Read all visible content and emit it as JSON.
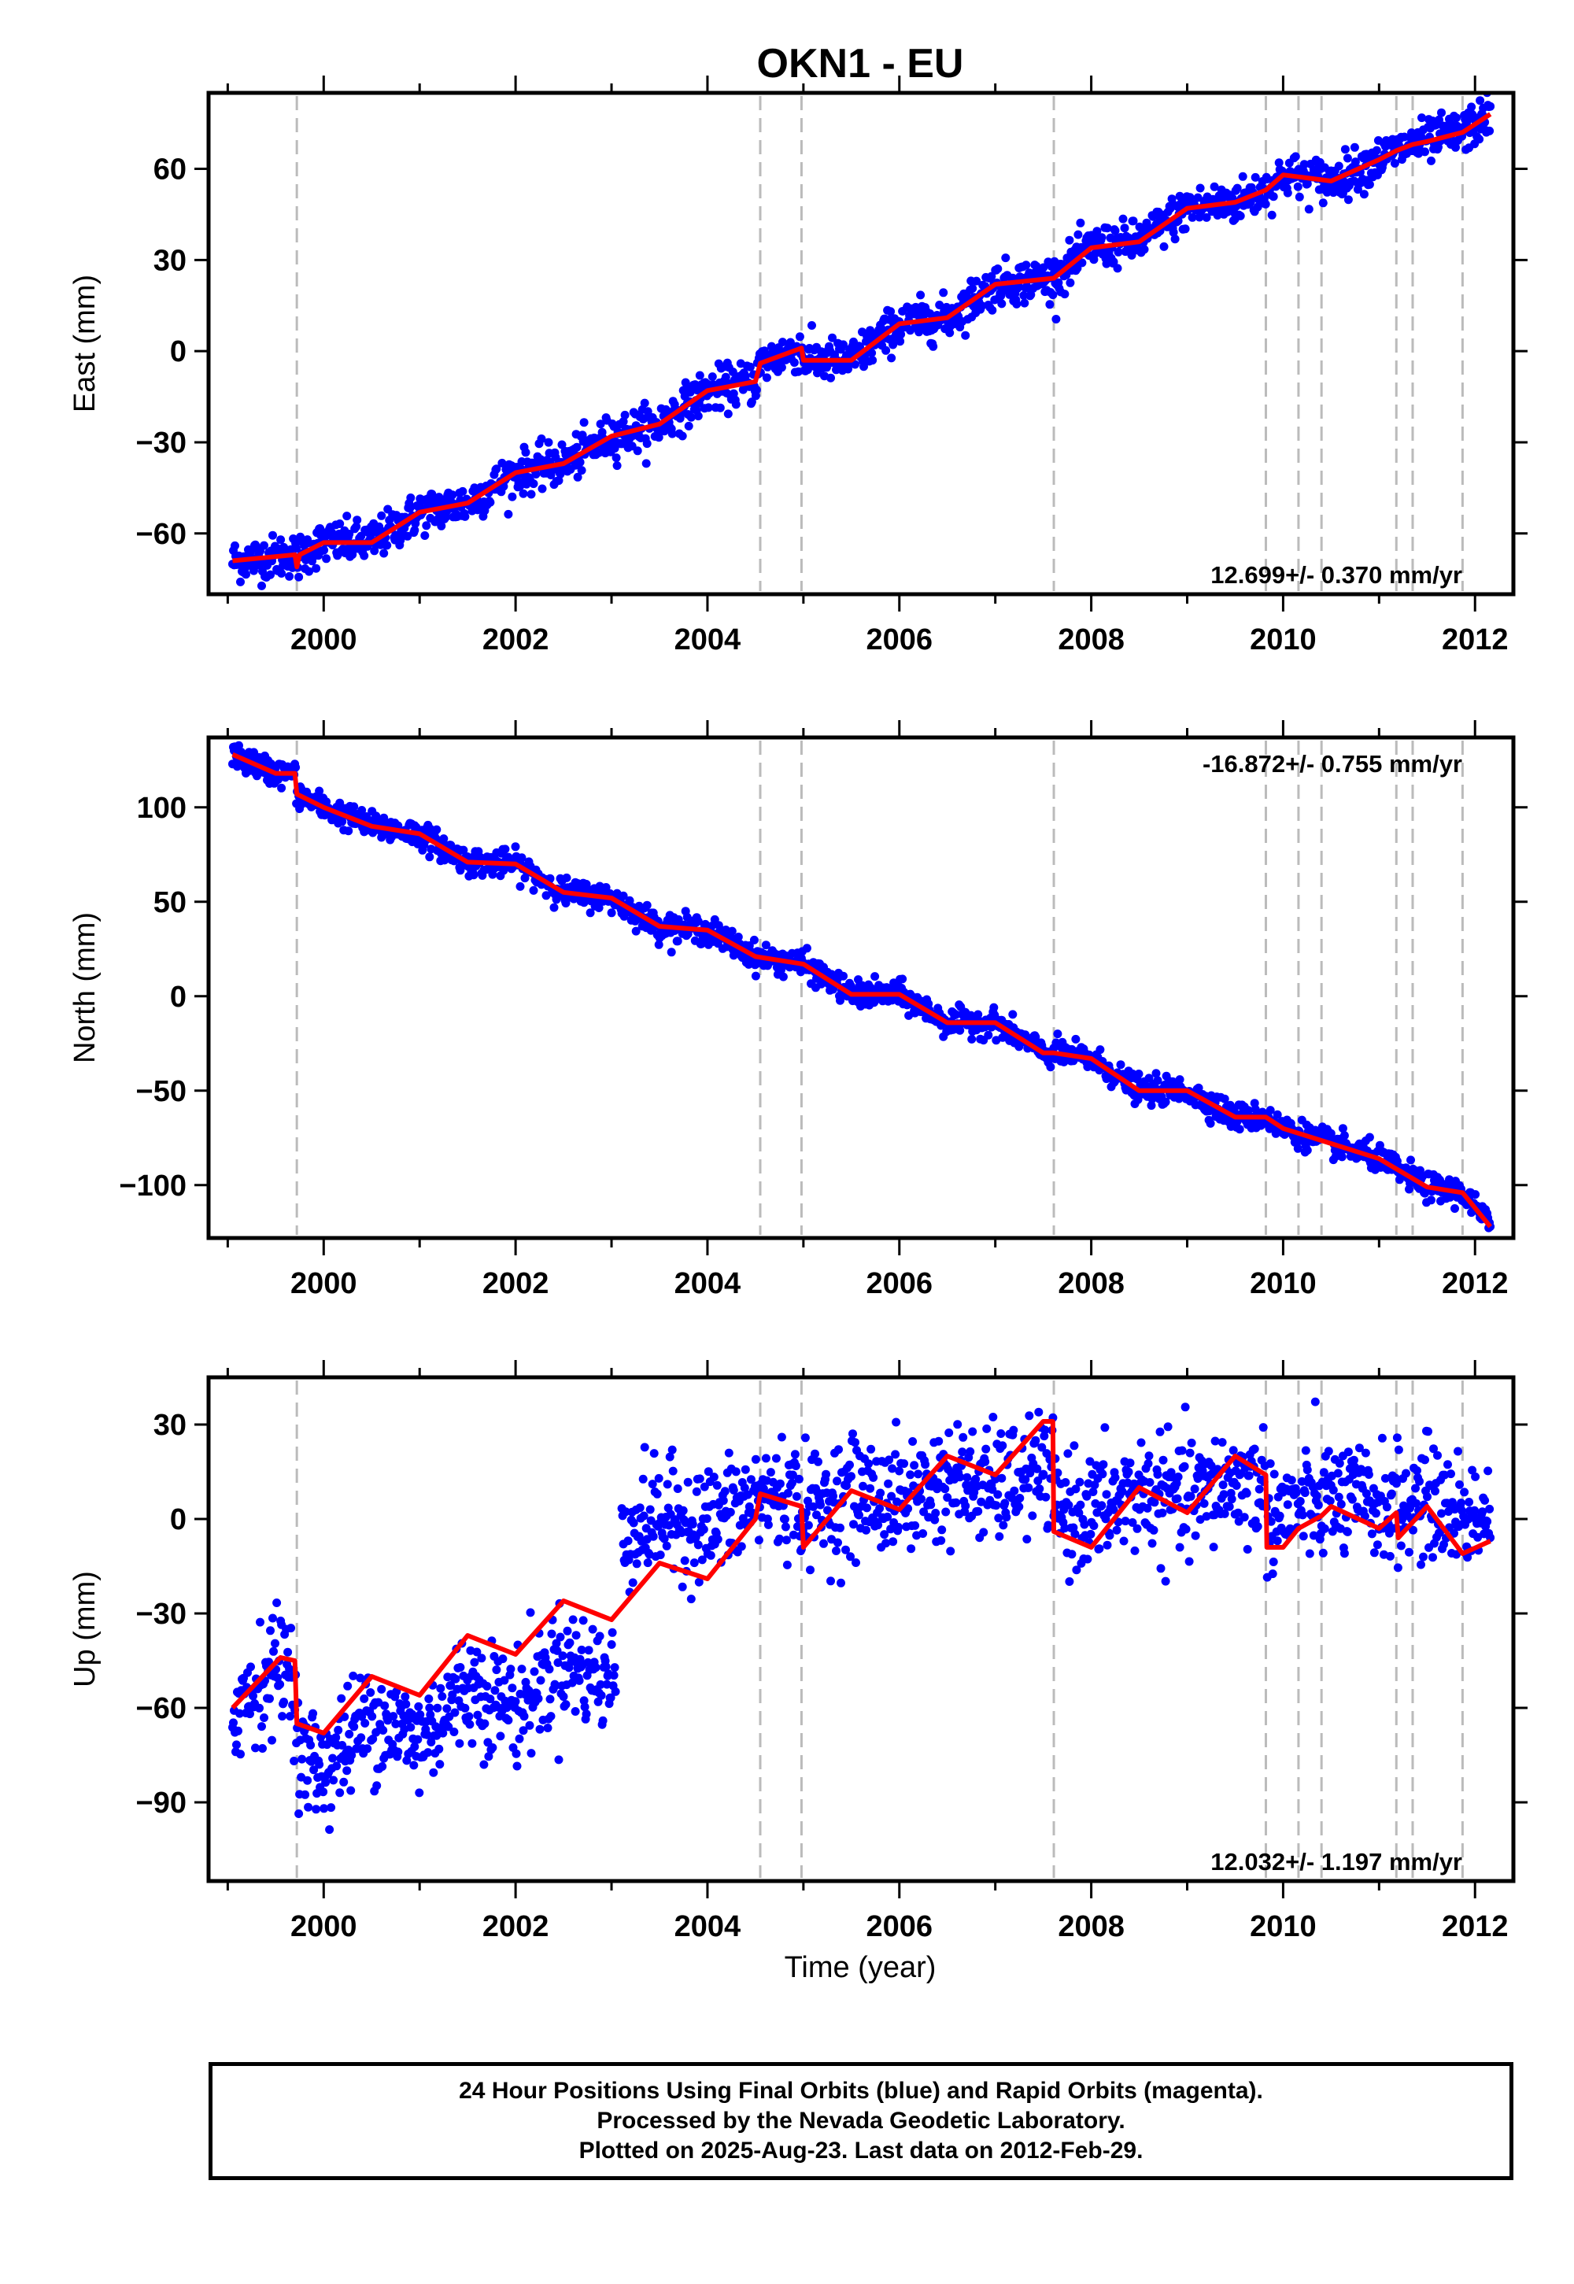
{
  "title": "OKN1 - EU",
  "xlabel": "Time (year)",
  "x_ticks": [
    "2000",
    "2002",
    "2004",
    "2006",
    "2008",
    "2010",
    "2012"
  ],
  "colors": {
    "data": "#0000ff",
    "model": "#ff0000",
    "event_line": "#bbbbbb",
    "frame": "#000000"
  },
  "footer": [
    "24 Hour Positions Using Final Orbits (blue) and Rapid Orbits (magenta).",
    "Processed by the Nevada Geodetic Laboratory.",
    "Plotted on 2025-Aug-23. Last data on 2012-Feb-29."
  ],
  "chart_data": [
    {
      "type": "scatter",
      "name": "east",
      "ylabel": "East (mm)",
      "rate_label": "12.699+/- 0.370 mm/yr",
      "rate_position": "bottom-right",
      "xlim": [
        1998.8,
        2012.4
      ],
      "ylim": [
        -80,
        85
      ],
      "y_ticks": [
        -60,
        -30,
        0,
        30,
        60
      ],
      "event_lines": [
        1999.72,
        2004.55,
        2004.98,
        2007.61,
        2009.82,
        2010.16,
        2010.4,
        2011.18,
        2011.35,
        2011.87
      ],
      "data_range_x": [
        1999.05,
        2012.16
      ],
      "data_scatter_mm": 3.5,
      "model_points": [
        [
          1999.05,
          -69
        ],
        [
          1999.7,
          -67
        ],
        [
          1999.72,
          -71
        ],
        [
          1999.75,
          -67
        ],
        [
          2000.0,
          -63
        ],
        [
          2000.5,
          -63
        ],
        [
          2001.0,
          -53
        ],
        [
          2001.5,
          -50
        ],
        [
          2002.0,
          -40
        ],
        [
          2002.5,
          -37
        ],
        [
          2003.0,
          -28
        ],
        [
          2003.5,
          -24
        ],
        [
          2004.0,
          -13
        ],
        [
          2004.5,
          -10
        ],
        [
          2004.55,
          -4
        ],
        [
          2004.98,
          1
        ],
        [
          2005.0,
          -3
        ],
        [
          2005.5,
          -3
        ],
        [
          2006.0,
          9
        ],
        [
          2006.5,
          11
        ],
        [
          2007.0,
          22
        ],
        [
          2007.61,
          24
        ],
        [
          2008.0,
          34
        ],
        [
          2008.5,
          36
        ],
        [
          2009.0,
          47
        ],
        [
          2009.5,
          49
        ],
        [
          2009.82,
          53
        ],
        [
          2010.0,
          58
        ],
        [
          2010.5,
          56
        ],
        [
          2011.0,
          63
        ],
        [
          2011.18,
          66
        ],
        [
          2011.35,
          68
        ],
        [
          2011.5,
          69
        ],
        [
          2011.87,
          72
        ],
        [
          2012.16,
          78
        ]
      ]
    },
    {
      "type": "scatter",
      "name": "north",
      "ylabel": "North (mm)",
      "rate_label": "-16.872+/- 0.755 mm/yr",
      "rate_position": "top-right",
      "xlim": [
        1998.8,
        2012.4
      ],
      "ylim": [
        -128,
        137
      ],
      "y_ticks": [
        -100,
        -50,
        0,
        50,
        100
      ],
      "event_lines": [
        1999.72,
        2004.55,
        2004.98,
        2007.61,
        2009.82,
        2010.16,
        2010.4,
        2011.18,
        2011.35,
        2011.87
      ],
      "data_range_x": [
        1999.05,
        2012.16
      ],
      "data_scatter_mm": 3.5,
      "model_points": [
        [
          1999.05,
          128
        ],
        [
          1999.5,
          118
        ],
        [
          1999.7,
          118
        ],
        [
          1999.72,
          107
        ],
        [
          2000.0,
          100
        ],
        [
          2000.5,
          90
        ],
        [
          2001.0,
          86
        ],
        [
          2001.5,
          71
        ],
        [
          2002.0,
          70
        ],
        [
          2002.5,
          55
        ],
        [
          2003.0,
          52
        ],
        [
          2003.5,
          37
        ],
        [
          2004.0,
          35
        ],
        [
          2004.5,
          21
        ],
        [
          2005.0,
          17
        ],
        [
          2005.5,
          1
        ],
        [
          2006.0,
          1
        ],
        [
          2006.5,
          -14
        ],
        [
          2007.0,
          -14
        ],
        [
          2007.5,
          -30
        ],
        [
          2007.61,
          -30
        ],
        [
          2008.0,
          -33
        ],
        [
          2008.5,
          -50
        ],
        [
          2009.0,
          -50
        ],
        [
          2009.5,
          -64
        ],
        [
          2009.82,
          -64
        ],
        [
          2010.0,
          -70
        ],
        [
          2010.5,
          -78
        ],
        [
          2011.0,
          -86
        ],
        [
          2011.5,
          -101
        ],
        [
          2011.87,
          -104
        ],
        [
          2012.16,
          -122
        ]
      ]
    },
    {
      "type": "scatter",
      "name": "up",
      "ylabel": "Up (mm)",
      "rate_label": "12.032+/- 1.197 mm/yr",
      "rate_position": "bottom-right",
      "xlim": [
        1998.8,
        2012.4
      ],
      "ylim": [
        -115,
        45
      ],
      "y_ticks": [
        -90,
        -60,
        -30,
        0,
        30
      ],
      "event_lines": [
        1999.72,
        2004.55,
        2004.98,
        2007.61,
        2009.82,
        2010.16,
        2010.4,
        2011.18,
        2011.35,
        2011.87
      ],
      "data_range_x": [
        1999.05,
        2012.16
      ],
      "data_gap_x": [
        2003.05,
        2003.1
      ],
      "data_scatter_mm": 9,
      "model_points": [
        [
          1999.05,
          -60
        ],
        [
          1999.3,
          -52
        ],
        [
          1999.55,
          -44
        ],
        [
          1999.7,
          -45
        ],
        [
          1999.72,
          -65
        ],
        [
          2000.0,
          -68
        ],
        [
          2000.5,
          -50
        ],
        [
          2001.0,
          -56
        ],
        [
          2001.5,
          -37
        ],
        [
          2002.0,
          -43
        ],
        [
          2002.5,
          -26
        ],
        [
          2003.0,
          -32
        ],
        [
          2003.5,
          -14
        ],
        [
          2004.0,
          -19
        ],
        [
          2004.5,
          0
        ],
        [
          2004.55,
          8
        ],
        [
          2004.98,
          4
        ],
        [
          2005.0,
          -9
        ],
        [
          2005.5,
          9
        ],
        [
          2006.0,
          3
        ],
        [
          2006.5,
          20
        ],
        [
          2007.0,
          14
        ],
        [
          2007.5,
          31
        ],
        [
          2007.6,
          31
        ],
        [
          2007.61,
          -4
        ],
        [
          2008.0,
          -9
        ],
        [
          2008.5,
          10
        ],
        [
          2009.0,
          2
        ],
        [
          2009.5,
          20
        ],
        [
          2009.82,
          14
        ],
        [
          2009.83,
          -9
        ],
        [
          2010.0,
          -9
        ],
        [
          2010.16,
          -3
        ],
        [
          2010.4,
          1
        ],
        [
          2010.5,
          4
        ],
        [
          2011.0,
          -3
        ],
        [
          2011.18,
          2
        ],
        [
          2011.2,
          -6
        ],
        [
          2011.35,
          -1
        ],
        [
          2011.5,
          4
        ],
        [
          2011.87,
          -11
        ],
        [
          2012.16,
          -7
        ]
      ]
    }
  ]
}
